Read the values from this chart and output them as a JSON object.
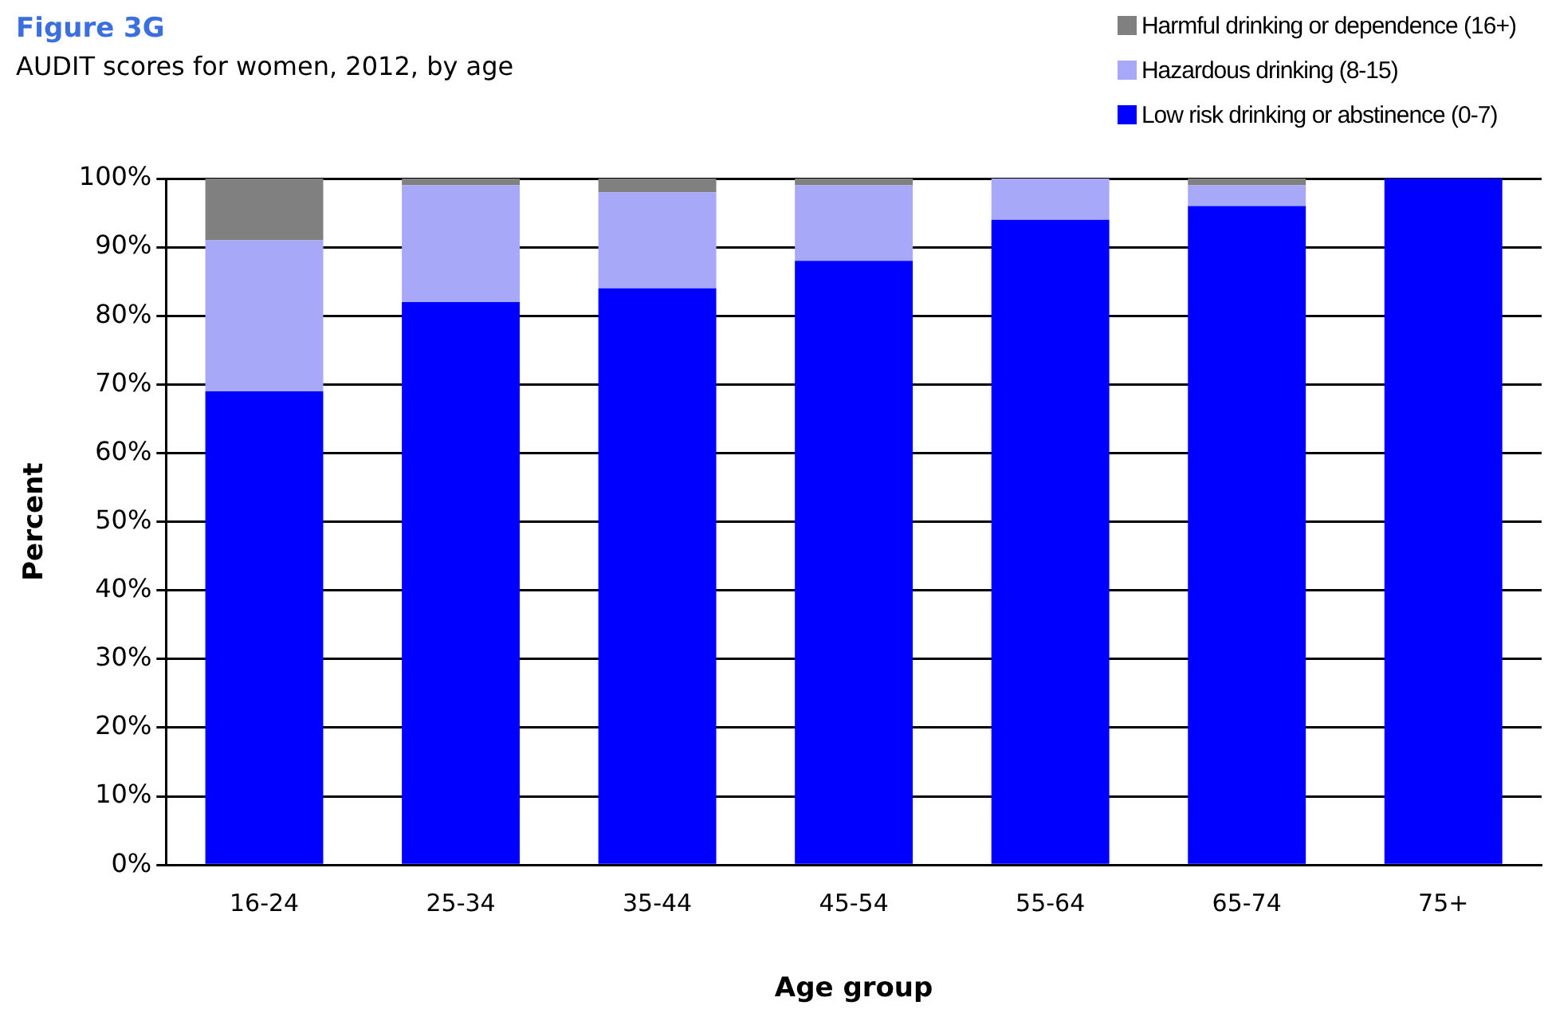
{
  "chart_data": {
    "type": "bar",
    "title": "Figure 3G",
    "subtitle": "AUDIT scores for women, 2012, by age",
    "xlabel": "Age group",
    "ylabel": "Percent",
    "categories": [
      "16-24",
      "25-34",
      "35-44",
      "45-54",
      "55-64",
      "65-74",
      "75+"
    ],
    "stacked": true,
    "series": [
      {
        "name": "Low risk drinking or abstinence (0-7)",
        "color": "#0000ff",
        "values": [
          69,
          82,
          84,
          88,
          94,
          96,
          100
        ]
      },
      {
        "name": "Hazardous drinking (8-15)",
        "color": "#a8a8f8",
        "values": [
          22,
          17,
          14,
          11,
          6,
          3,
          0
        ]
      },
      {
        "name": "Harmful drinking or dependence (16+)",
        "color": "#808080",
        "values": [
          9,
          1,
          2,
          1,
          0,
          1,
          0
        ]
      }
    ],
    "ylim": [
      0,
      100
    ],
    "yticks": [
      {
        "value": 0,
        "label": "0%"
      },
      {
        "value": 10,
        "label": "10%"
      },
      {
        "value": 20,
        "label": "20%"
      },
      {
        "value": 30,
        "label": "30%"
      },
      {
        "value": 40,
        "label": "40%"
      },
      {
        "value": 50,
        "label": "50%"
      },
      {
        "value": 60,
        "label": "60%"
      },
      {
        "value": 70,
        "label": "70%"
      },
      {
        "value": 80,
        "label": "80%"
      },
      {
        "value": 90,
        "label": "90%"
      },
      {
        "value": 100,
        "label": "100%"
      }
    ],
    "grid": "y",
    "legend": "top right"
  }
}
